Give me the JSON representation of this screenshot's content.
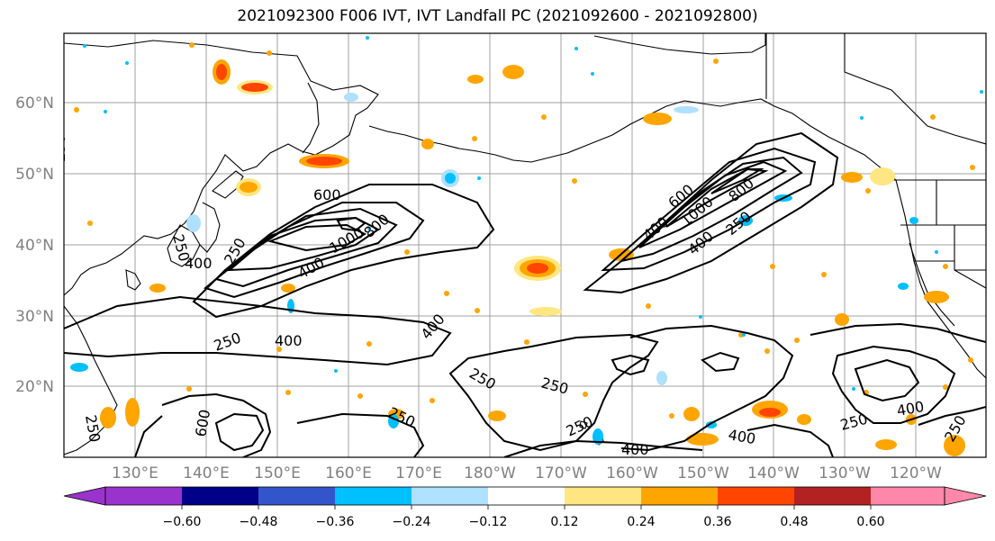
{
  "title": "2021092300 F006 IVT, IVT Landfall PC (2021092600 - 2021092800)",
  "map": {
    "lat_ticks": [
      "60°N",
      "50°N",
      "40°N",
      "30°N",
      "20°N"
    ],
    "lon_ticks": [
      "130°E",
      "140°E",
      "150°E",
      "160°E",
      "170°E",
      "180°W",
      "170°W",
      "160°W",
      "150°W",
      "140°W",
      "130°W",
      "120°W"
    ],
    "contour_levels": [
      250,
      400,
      600,
      800,
      1000
    ],
    "contour_labels": [
      "600",
      "250",
      "250",
      "400",
      "1000",
      "800",
      "400",
      "250",
      "400",
      "400",
      "250",
      "250",
      "250",
      "600",
      "250",
      "250",
      "400",
      "400",
      "400",
      "250",
      "400",
      "250",
      "600",
      "1000",
      "800",
      "400",
      "250",
      "250",
      "400",
      "250",
      "250"
    ],
    "gridlines": true,
    "colors": {
      "contour": "#000000",
      "grid": "#a0a0a0",
      "coast": "#000000"
    }
  },
  "colorbar": {
    "ticks": [
      "−0.60",
      "−0.48",
      "−0.36",
      "−0.24",
      "−0.12",
      "0.12",
      "0.24",
      "0.36",
      "0.48",
      "0.60"
    ],
    "colors": [
      "#9933cc",
      "#000088",
      "#3355cc",
      "#00bfff",
      "#aee0ff",
      "#ffffff",
      "#ffe680",
      "#ffa500",
      "#ff4500",
      "#b22222",
      "#ff88aa"
    ]
  }
}
